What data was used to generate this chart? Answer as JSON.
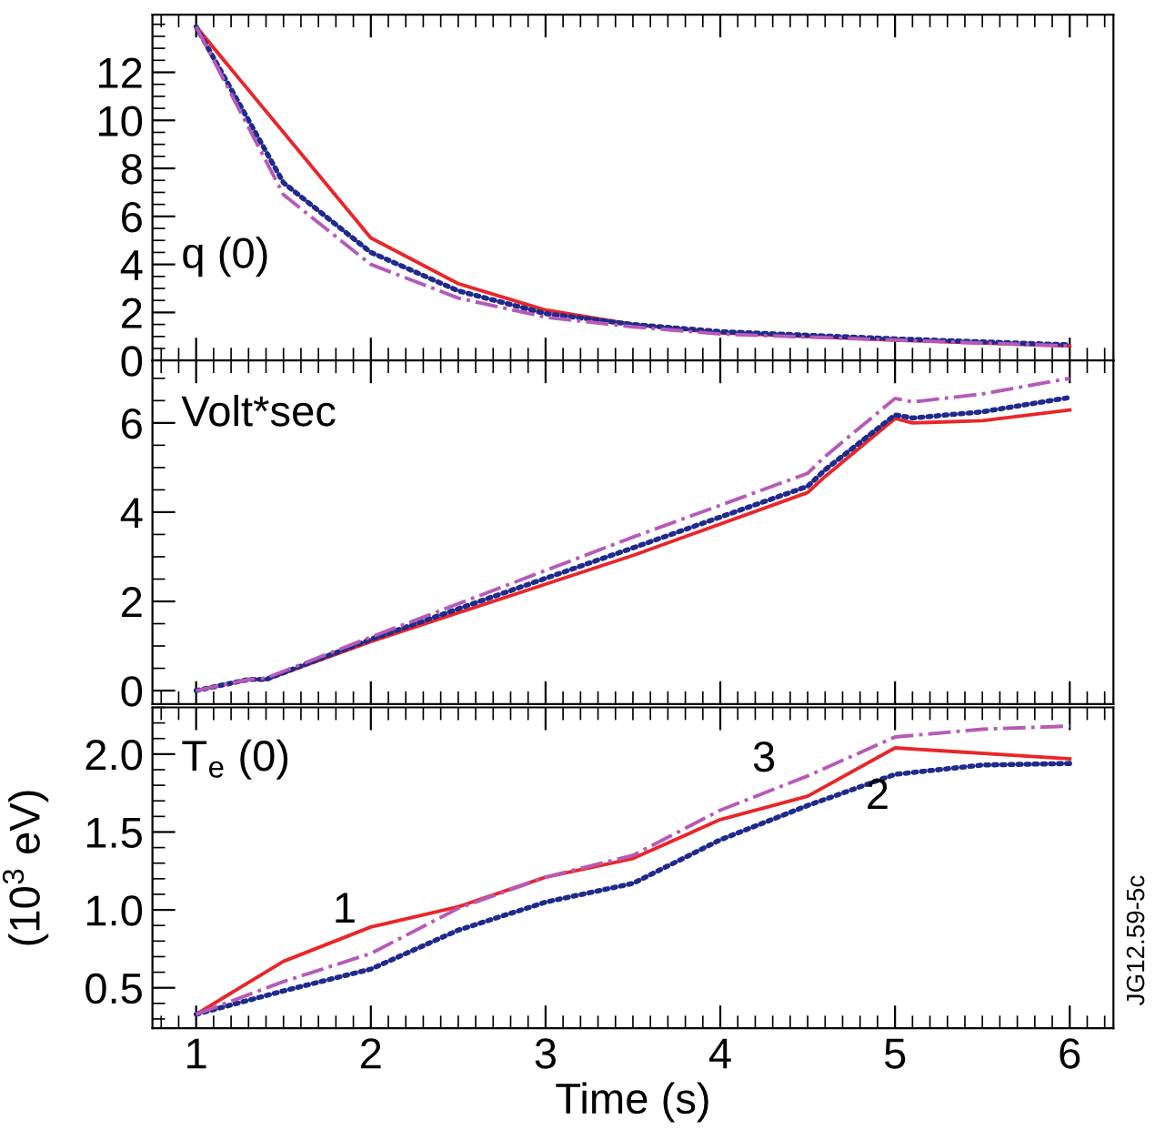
{
  "chart_data": [
    {
      "type": "line",
      "title": "q (0)",
      "x": [
        1,
        1.5,
        2,
        2.5,
        3,
        3.5,
        4,
        5,
        6
      ],
      "xlim": [
        0.75,
        6.25
      ],
      "xticks": [
        1,
        2,
        3,
        4,
        5,
        6
      ],
      "ylim": [
        0,
        14.4
      ],
      "yticks": [
        0,
        2,
        4,
        6,
        8,
        10,
        12
      ],
      "tick_labels": "y",
      "series": [
        {
          "color": "#e8262a",
          "line_style": "solid",
          "values": [
            13.9,
            null,
            5.1,
            3.2,
            2.1,
            1.5,
            1.15,
            0.85,
            0.6
          ]
        },
        {
          "color": "#1f2a8c",
          "line_style": "dotted",
          "values": [
            13.9,
            7.4,
            4.5,
            2.9,
            1.95,
            1.5,
            1.2,
            0.9,
            0.65
          ]
        },
        {
          "color": "#b65ab8",
          "line_style": "dashdot",
          "values": [
            13.9,
            6.9,
            4.0,
            2.6,
            1.8,
            1.4,
            1.1,
            0.85,
            0.6
          ]
        }
      ]
    },
    {
      "type": "line",
      "title": "Volt*sec",
      "x": [
        1,
        1.3,
        1.4,
        2,
        3.5,
        4.5,
        4.6,
        5,
        5.1,
        5.5,
        6
      ],
      "xlim": [
        0.75,
        6.25
      ],
      "xticks": [
        1,
        2,
        3,
        4,
        5,
        6
      ],
      "ylim": [
        -0.3,
        7.4
      ],
      "yticks": [
        0,
        2,
        4,
        6
      ],
      "tick_labels": "y",
      "series": [
        {
          "color": "#e8262a",
          "line_style": "solid",
          "values": [
            0,
            0.25,
            0.25,
            1.1,
            3.03,
            4.44,
            4.8,
            6.1,
            6.0,
            6.05,
            6.29
          ]
        },
        {
          "color": "#1f2a8c",
          "line_style": "dotted",
          "values": [
            0,
            0.25,
            0.25,
            1.15,
            3.2,
            4.58,
            4.95,
            6.18,
            6.11,
            6.25,
            6.57
          ]
        },
        {
          "color": "#b65ab8",
          "line_style": "dashdot",
          "values": [
            0,
            0.25,
            0.28,
            1.2,
            3.44,
            4.87,
            5.25,
            6.55,
            6.47,
            6.65,
            7.0
          ]
        }
      ]
    },
    {
      "type": "line",
      "title": "T$_{e}$ (0)",
      "ylabel": "(10$^{3}$ eV)",
      "xlabel": "Time (s)",
      "x": [
        1,
        1.5,
        2,
        2.5,
        3,
        3.5,
        4,
        4.5,
        5,
        5.5,
        6
      ],
      "xlim": [
        0.75,
        6.25
      ],
      "xticks": [
        1,
        2,
        3,
        4,
        5,
        6
      ],
      "ylim": [
        0.24,
        2.3
      ],
      "yticks": [
        {
          "value": 0.5,
          "label": "0.5"
        },
        {
          "value": 1,
          "label": "1.0"
        },
        {
          "value": 1.5,
          "label": "1.5"
        },
        {
          "value": 2,
          "label": "2.0"
        }
      ],
      "series": [
        {
          "name": "1",
          "color": "#e8262a",
          "line_style": "solid",
          "values": [
            0.33,
            0.67,
            0.89,
            1.02,
            1.21,
            1.33,
            1.58,
            1.73,
            2.04,
            null,
            1.97
          ]
        },
        {
          "name": "2",
          "color": "#1f2a8c",
          "line_style": "dotted",
          "values": [
            0.33,
            0.48,
            0.62,
            0.87,
            1.05,
            1.17,
            1.45,
            1.67,
            1.87,
            1.93,
            1.94
          ]
        },
        {
          "name": "3",
          "color": "#b65ab8",
          "line_style": "dashdot",
          "values": [
            0.33,
            0.54,
            0.72,
            1.01,
            1.21,
            1.35,
            1.64,
            1.86,
            2.11,
            2.16,
            2.18
          ]
        }
      ],
      "annotations": [
        "JG12.59-5c"
      ]
    }
  ]
}
